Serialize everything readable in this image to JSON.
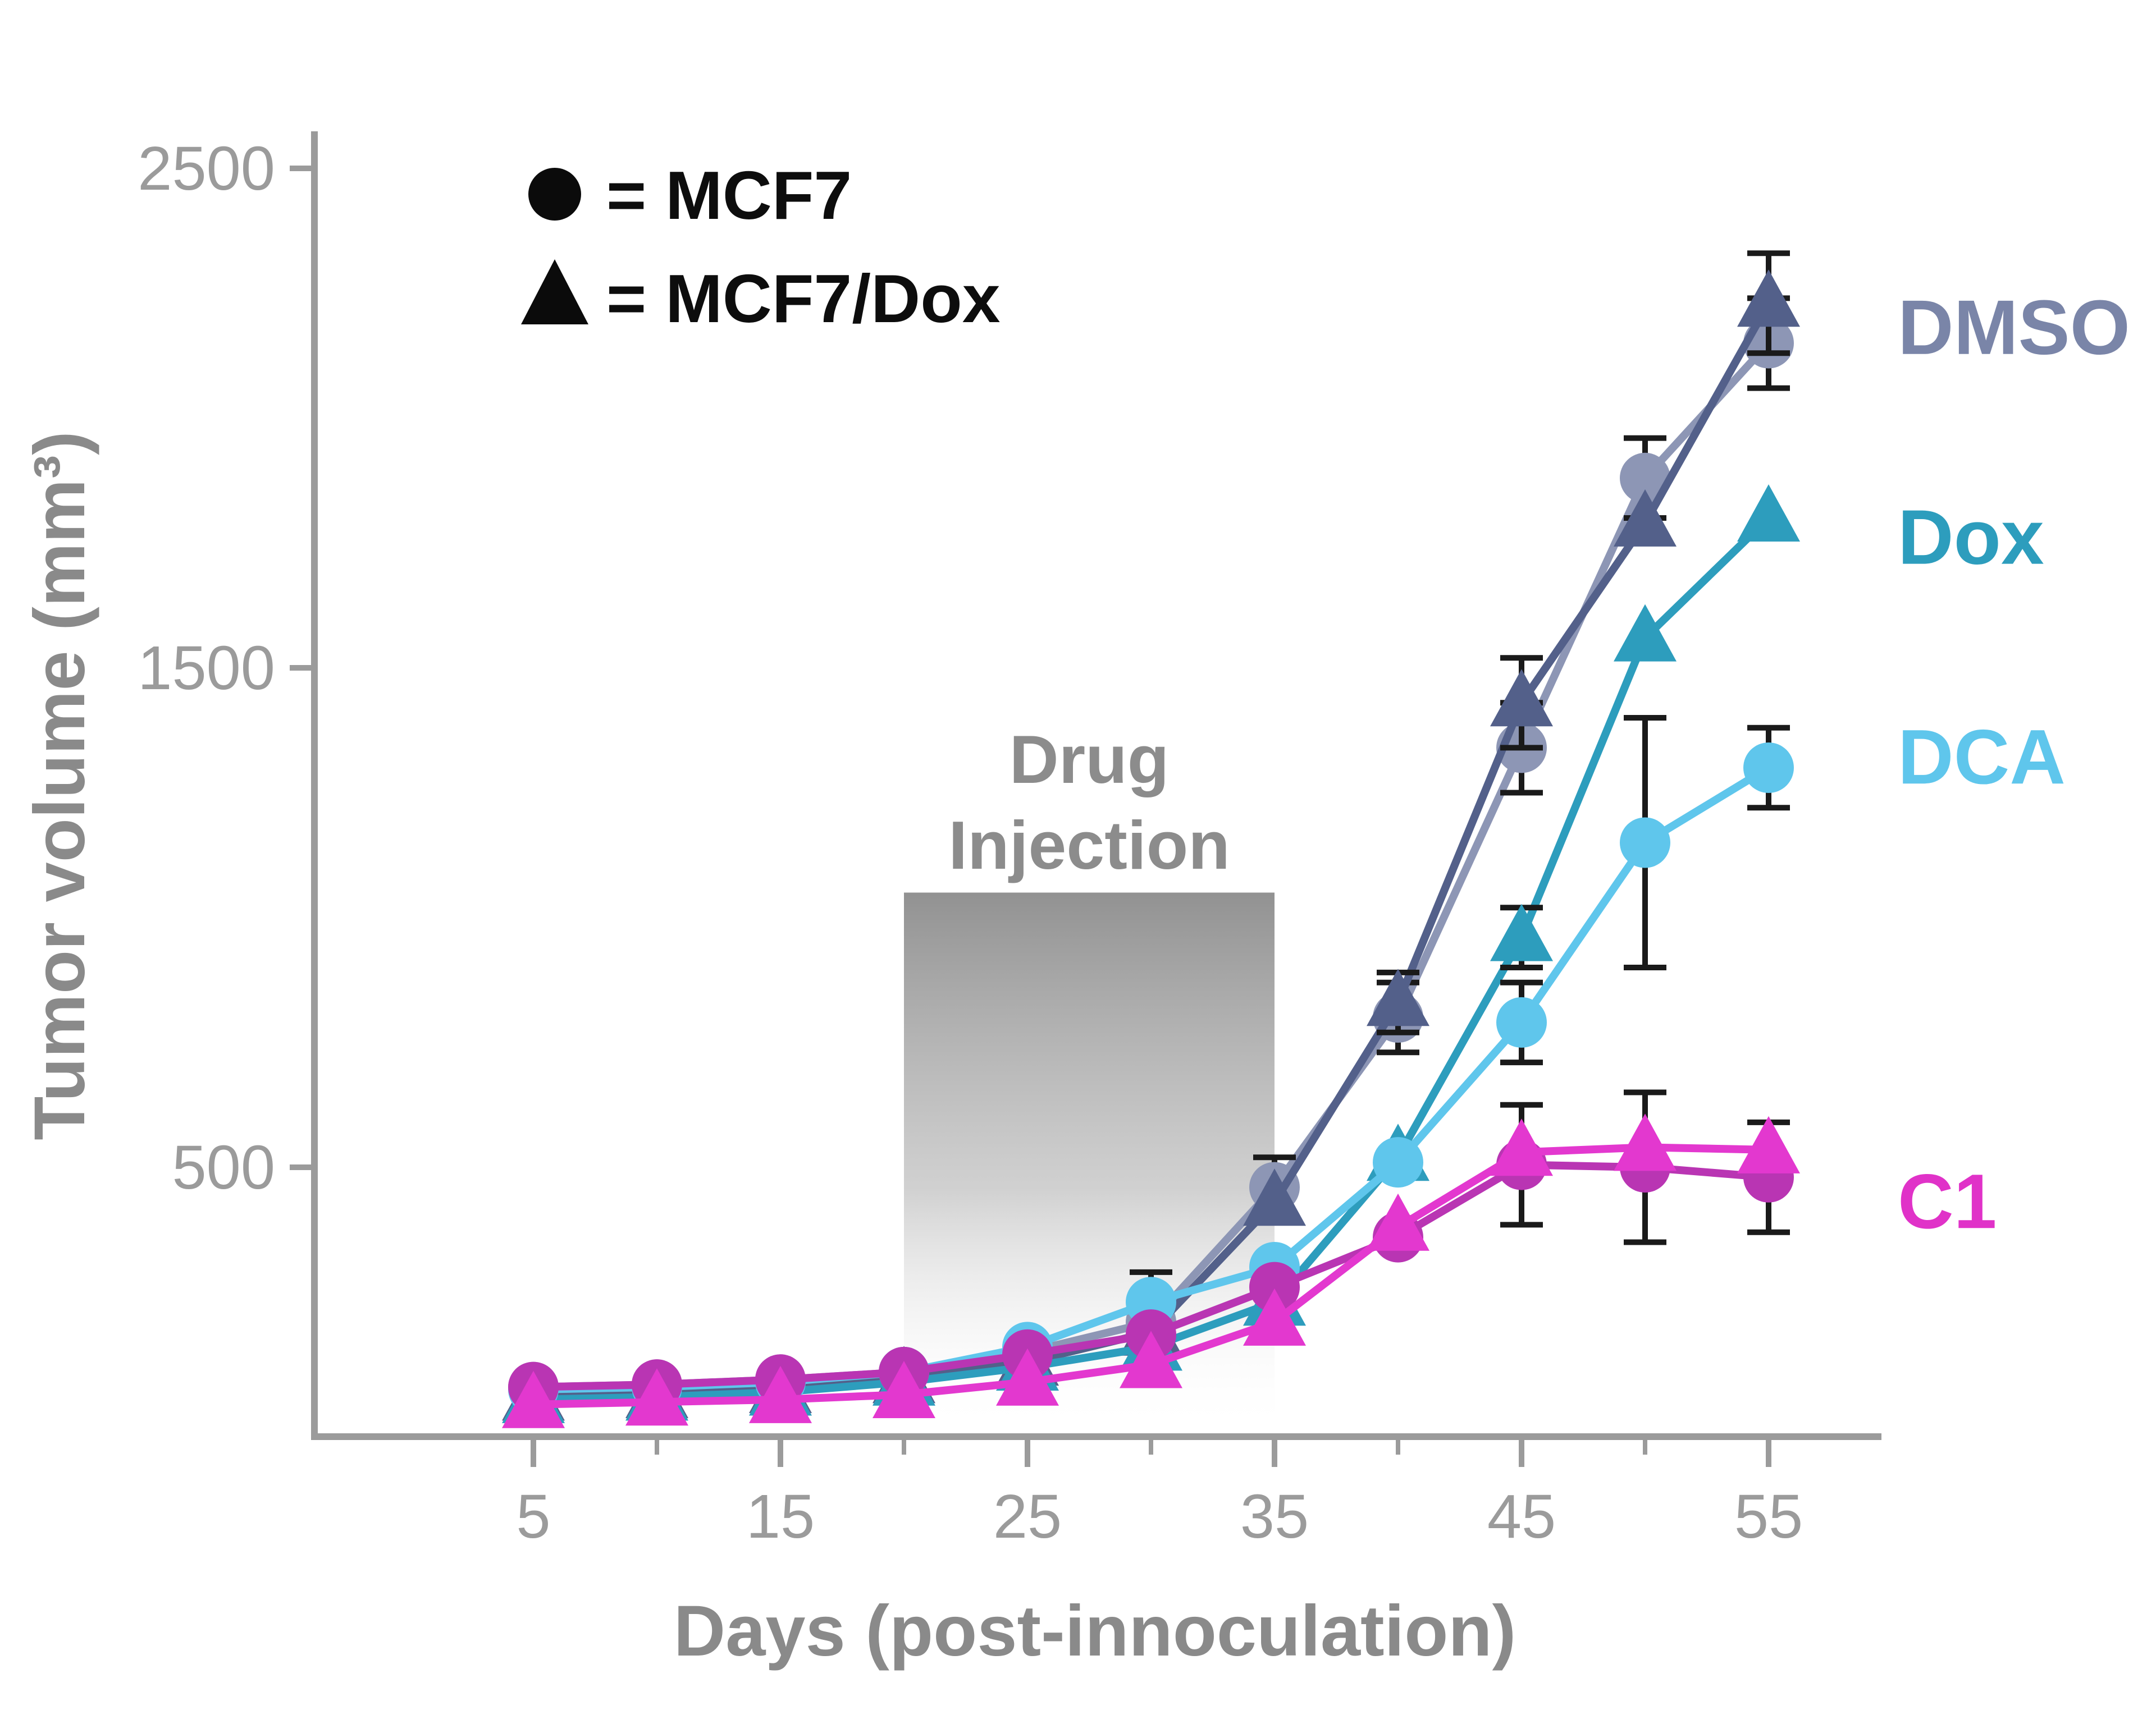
{
  "chart_data": {
    "type": "line",
    "title": "",
    "xlabel": "Days (post-innoculation)",
    "ylabel": "Tumor volume (mm³)",
    "xlim": [
      2,
      59
    ],
    "ylim": [
      0,
      2500
    ],
    "x_ticks": [
      5,
      15,
      25,
      35,
      45,
      55
    ],
    "x_minor_ticks": [
      10,
      20,
      30,
      40,
      50
    ],
    "y_ticks": [
      500,
      1500,
      2500
    ],
    "grid": false,
    "axis_color": "#9B9B9B",
    "tick_label_color": "#9B9B9B",
    "axis_title_color": "#8A8A8A",
    "legend": {
      "position": "top-left",
      "items": [
        {
          "marker": "circle",
          "label": "= MCF7"
        },
        {
          "marker": "triangle",
          "label": "= MCF7/Dox"
        }
      ]
    },
    "annotation": {
      "lines": [
        "Drug",
        "Injection"
      ],
      "color": "#8C8C8C",
      "region": {
        "x_start": 20,
        "x_end": 35,
        "y_top": 1050,
        "y_bottom": 0
      }
    },
    "x": [
      5,
      10,
      15,
      20,
      25,
      30,
      35,
      40,
      45,
      50,
      55
    ],
    "series": [
      {
        "name": "DMSO MCF7",
        "group": "DMSO",
        "marker": "circle",
        "color": "#8D96B5",
        "values": [
          60,
          65,
          75,
          90,
          130,
          190,
          460,
          800,
          1340,
          1880,
          2150
        ],
        "errors": [
          0,
          0,
          0,
          0,
          0,
          0,
          60,
          70,
          90,
          80,
          90
        ]
      },
      {
        "name": "DMSO MCF7/Dox",
        "group": "DMSO",
        "marker": "triangle",
        "color": "#53608A",
        "values": [
          40,
          45,
          55,
          75,
          110,
          170,
          430,
          830,
          1430,
          1790,
          2230
        ],
        "errors": [
          0,
          0,
          0,
          0,
          0,
          0,
          0,
          60,
          90,
          0,
          100
        ]
      },
      {
        "name": "Dox MCF7/Dox",
        "group": "Dox",
        "marker": "triangle",
        "color": "#2D9DBD",
        "values": [
          35,
          40,
          50,
          70,
          100,
          140,
          230,
          520,
          960,
          1560,
          1800
        ],
        "errors": [
          0,
          0,
          0,
          0,
          0,
          0,
          0,
          0,
          60,
          0,
          0
        ]
      },
      {
        "name": "DCA MCF7",
        "group": "DCA",
        "marker": "circle",
        "color": "#5FC6EC",
        "values": [
          55,
          60,
          70,
          90,
          140,
          230,
          300,
          510,
          790,
          1150,
          1300
        ],
        "errors": [
          0,
          0,
          0,
          0,
          0,
          60,
          0,
          0,
          80,
          250,
          80
        ]
      },
      {
        "name": "C1 MCF7",
        "group": "C1",
        "marker": "circle",
        "color": "#B935B3",
        "values": [
          60,
          65,
          75,
          90,
          125,
          165,
          260,
          360,
          505,
          500,
          480
        ],
        "errors": [
          0,
          0,
          0,
          0,
          0,
          0,
          0,
          0,
          120,
          150,
          110
        ]
      },
      {
        "name": "C1 MCF7/Dox",
        "group": "C1",
        "marker": "triangle",
        "color": "#E338CF",
        "values": [
          25,
          30,
          35,
          45,
          70,
          105,
          190,
          380,
          530,
          540,
          535
        ],
        "errors": [
          0,
          0,
          0,
          0,
          0,
          0,
          0,
          0,
          0,
          0,
          0
        ]
      }
    ],
    "series_labels": [
      {
        "text": "DMSO",
        "color": "#7A85A8",
        "y_value": 2180
      },
      {
        "text": "Dox",
        "color": "#2D9DBD",
        "y_value": 1760
      },
      {
        "text": "DCA",
        "color": "#5FC6EC",
        "y_value": 1320
      },
      {
        "text": "C1",
        "color": "#E032C8",
        "y_value": 430
      }
    ]
  }
}
